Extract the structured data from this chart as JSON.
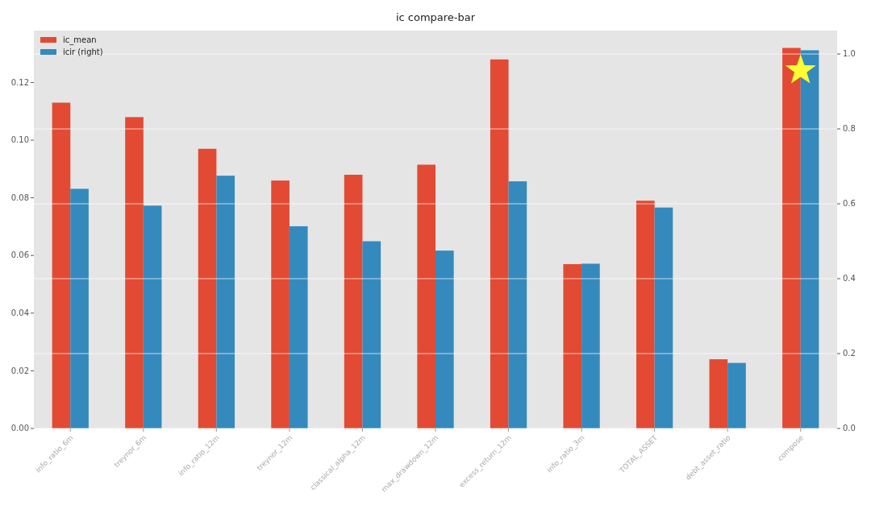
{
  "chart_data": {
    "type": "bar",
    "title": "ic compare-bar",
    "categories": [
      "info_ratio_6m",
      "treynor_6m",
      "info_ratio_12m",
      "treynor_12m",
      "classical_alpha_12m",
      "max_drawdown_12m",
      "excess_return_12m",
      "info_ratio_3m",
      "TOTAL_ASSET",
      "debt_asset_ratio",
      "compose"
    ],
    "series": [
      {
        "name": "ic_mean",
        "color": "#e24a33",
        "values": [
          0.113,
          0.108,
          0.097,
          0.086,
          0.088,
          0.0915,
          0.128,
          0.057,
          0.079,
          0.024,
          0.132
        ]
      },
      {
        "name": "icir (right)",
        "color": "#348abd",
        "axis": "y2",
        "values": [
          0.64,
          0.595,
          0.675,
          0.54,
          0.5,
          0.475,
          0.66,
          0.44,
          0.59,
          0.175,
          1.01
        ]
      }
    ],
    "ylim": [
      0,
      0.138
    ],
    "yticks": [
      {
        "value": 0,
        "label": "0.00"
      },
      {
        "value": 0.02,
        "label": "0.02"
      },
      {
        "value": 0.04,
        "label": "0.04"
      },
      {
        "value": 0.06,
        "label": "0.06"
      },
      {
        "value": 0.08,
        "label": "0.08"
      },
      {
        "value": 0.1,
        "label": "0.10"
      },
      {
        "value": 0.12,
        "label": "0.12"
      }
    ],
    "y2lim": [
      0,
      1.0625
    ],
    "y2ticks": [
      {
        "value": 0,
        "label": "0.0"
      },
      {
        "value": 0.2,
        "label": "0.2"
      },
      {
        "value": 0.4,
        "label": "0.4"
      },
      {
        "value": 0.6,
        "label": "0.6"
      },
      {
        "value": 0.8,
        "label": "0.8"
      },
      {
        "value": 1,
        "label": "1.0"
      }
    ],
    "grid": true,
    "legend": "top left"
  }
}
